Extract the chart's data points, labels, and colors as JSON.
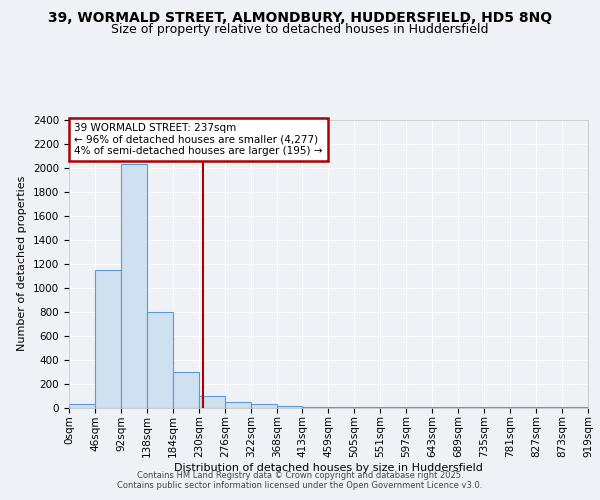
{
  "title1": "39, WORMALD STREET, ALMONDBURY, HUDDERSFIELD, HD5 8NQ",
  "title2": "Size of property relative to detached houses in Huddersfield",
  "xlabel": "Distribution of detached houses by size in Huddersfield",
  "ylabel": "Number of detached properties",
  "bin_edges": [
    0,
    46,
    92,
    138,
    184,
    230,
    276,
    322,
    368,
    413,
    459,
    505,
    551,
    597,
    643,
    689,
    735,
    781,
    827,
    873,
    919
  ],
  "bar_heights": [
    30,
    1150,
    2030,
    800,
    300,
    100,
    50,
    30,
    15,
    8,
    6,
    4,
    3,
    2,
    2,
    1,
    1,
    1,
    1,
    1
  ],
  "bar_color": "#cfe0f0",
  "bar_edge_color": "#5b9bd5",
  "property_size": 237,
  "red_line_color": "#aa0000",
  "annotation_text": "39 WORMALD STREET: 237sqm\n← 96% of detached houses are smaller (4,277)\n4% of semi-detached houses are larger (195) →",
  "annotation_box_color": "#ffffff",
  "annotation_box_edge": "#aa0000",
  "ylim": [
    0,
    2400
  ],
  "yticks": [
    0,
    200,
    400,
    600,
    800,
    1000,
    1200,
    1400,
    1600,
    1800,
    2000,
    2200,
    2400
  ],
  "footer1": "Contains HM Land Registry data © Crown copyright and database right 2025.",
  "footer2": "Contains public sector information licensed under the Open Government Licence v3.0.",
  "bg_color": "#eef2f7",
  "grid_color": "#ffffff",
  "title_fontsize": 10,
  "subtitle_fontsize": 9,
  "axis_label_fontsize": 8,
  "tick_fontsize": 7.5,
  "footer_fontsize": 6
}
